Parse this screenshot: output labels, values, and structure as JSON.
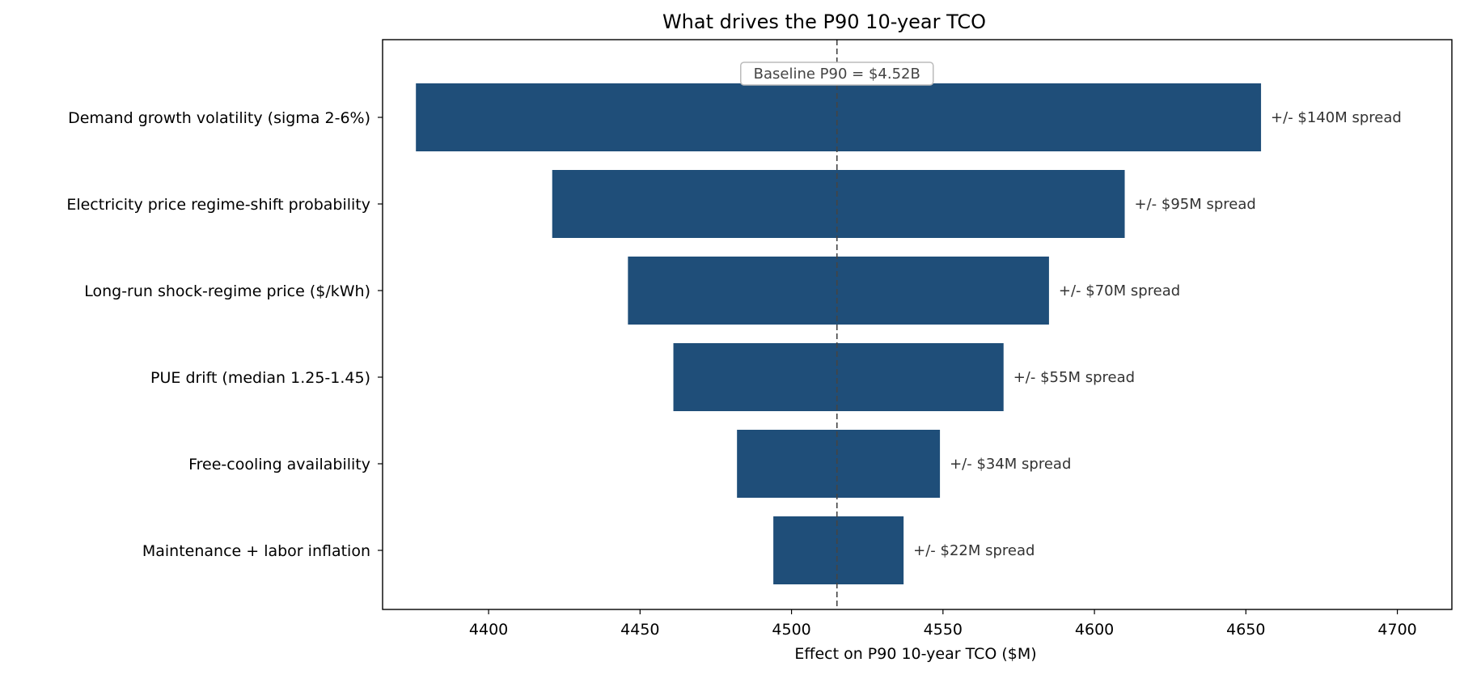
{
  "chart_data": {
    "type": "bar",
    "orientation": "horizontal",
    "variant": "tornado",
    "title": "What drives the P90 10-year TCO",
    "xlabel": "Effect on P90 10-year TCO  ($M)",
    "ylabel": "",
    "xlim": [
      4365,
      4718
    ],
    "xticks": [
      4400,
      4450,
      4500,
      4550,
      4600,
      4650,
      4700
    ],
    "baseline": {
      "value": 4515,
      "label": "Baseline P90 = $4.52B"
    },
    "bar_color": "#1f4e79",
    "grid": false,
    "legend": "none",
    "bars": [
      {
        "label": "Demand growth volatility (sigma 2-6%)",
        "low": 4376,
        "high": 4655,
        "annotation": "+/- $140M spread"
      },
      {
        "label": "Electricity price regime-shift probability",
        "low": 4421,
        "high": 4610,
        "annotation": "+/- $95M spread"
      },
      {
        "label": "Long-run shock-regime price ($/kWh)",
        "low": 4446,
        "high": 4585,
        "annotation": "+/- $70M spread"
      },
      {
        "label": "PUE drift (median 1.25-1.45)",
        "low": 4461,
        "high": 4570,
        "annotation": "+/- $55M spread"
      },
      {
        "label": "Free-cooling availability",
        "low": 4482,
        "high": 4549,
        "annotation": "+/- $34M spread"
      },
      {
        "label": "Maintenance + labor inflation",
        "low": 4494,
        "high": 4537,
        "annotation": "+/- $22M spread"
      }
    ]
  }
}
